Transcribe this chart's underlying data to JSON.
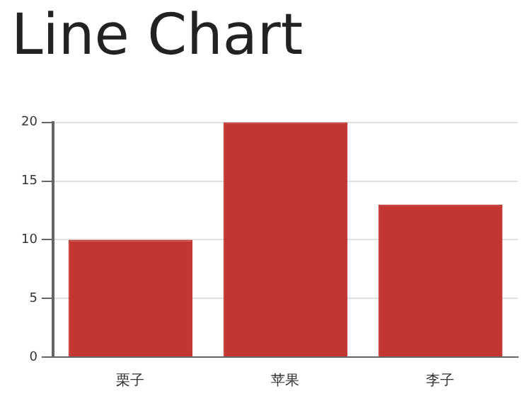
{
  "chart_data": {
    "type": "bar",
    "title": "Line Chart",
    "categories": [
      "栗子",
      "苹果",
      "李子"
    ],
    "values": [
      10,
      20,
      13
    ],
    "color": "#c23531",
    "ylim": [
      0,
      20
    ],
    "yticks": [
      0,
      5,
      10,
      15,
      20
    ],
    "grid": "y",
    "legend": false
  }
}
